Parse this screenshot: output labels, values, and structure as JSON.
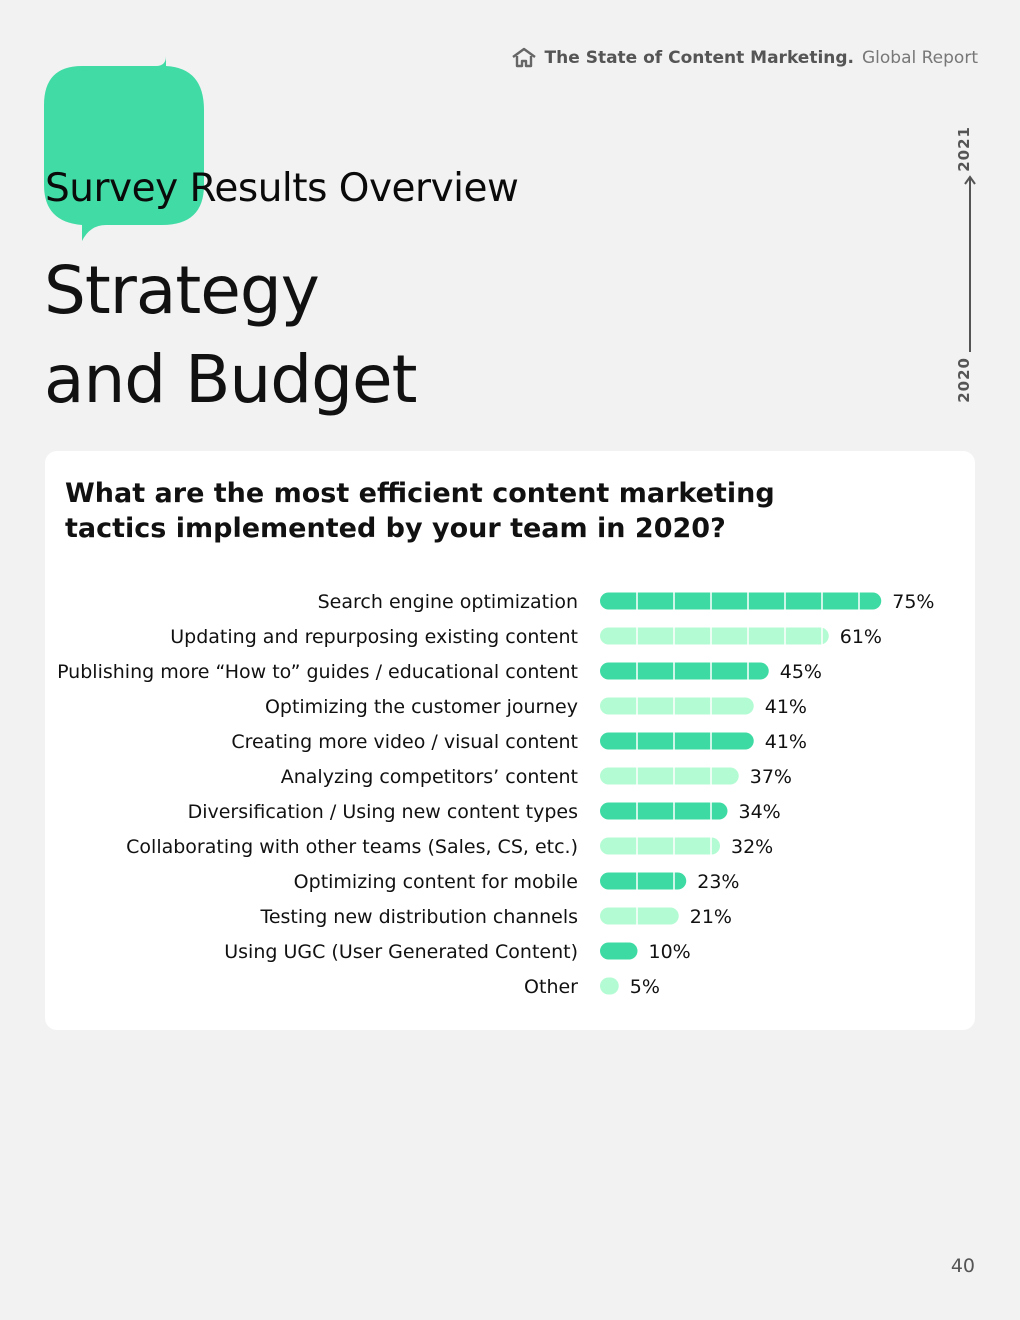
{
  "header": {
    "title": "The State of Content Marketing.",
    "subtitle": "Global Report"
  },
  "section_label": "Survey Results Overview",
  "main_title": {
    "line1": "Strategy",
    "line2": "and Budget"
  },
  "timeline": {
    "start_year": "2020",
    "end_year": "2021"
  },
  "card": {
    "question_line1": "What are the most efficient content marketing",
    "question_line2": "tactics implemented by your team in 2020?"
  },
  "colors": {
    "accent_dark": "#3ddba3",
    "accent_light": "#b3fbd3",
    "blob": "#41dba5"
  },
  "chart_data": {
    "type": "bar",
    "orientation": "horizontal",
    "categories": [
      "Search engine optimization",
      "Updating and repurposing existing content",
      "Publishing more “How to” guides / educational content",
      "Optimizing the customer journey",
      "Creating more video / visual content",
      "Analyzing competitors’ content",
      "Diversification / Using new content types",
      "Collaborating with other teams (Sales, CS, etc.)",
      "Optimizing content for mobile",
      "Testing new distribution channels",
      "Using UGC (User Generated Content)",
      "Other"
    ],
    "values": [
      75,
      61,
      45,
      41,
      41,
      37,
      34,
      32,
      23,
      21,
      10,
      5
    ],
    "value_labels": [
      "75%",
      "61%",
      "45%",
      "41%",
      "41%",
      "37%",
      "34%",
      "32%",
      "23%",
      "21%",
      "10%",
      "5%"
    ],
    "unit": "%",
    "xlim": [
      0,
      100
    ],
    "bar_colors": [
      "#3ddba3",
      "#b3fbd3"
    ],
    "grid": false
  },
  "page_number": "40"
}
